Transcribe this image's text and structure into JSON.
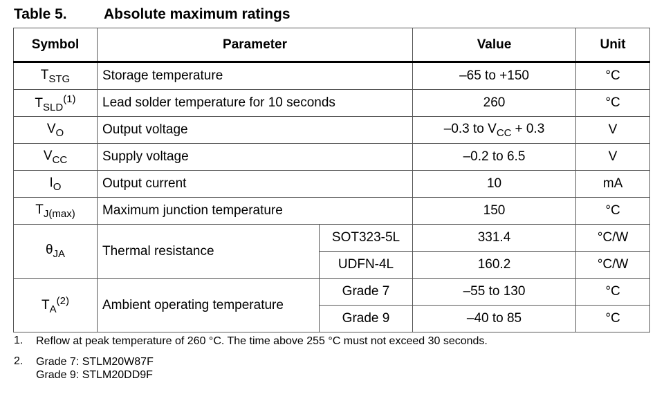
{
  "title": {
    "label": "Table 5.",
    "text": "Absolute maximum ratings"
  },
  "table": {
    "header": [
      "Symbol",
      "Parameter",
      "Value",
      "Unit"
    ],
    "rows": [
      {
        "symbol": {
          "base": "T",
          "sub": "STG"
        },
        "parameter": "Storage temperature",
        "value": "–65 to +150",
        "unit": "°C"
      },
      {
        "symbol": {
          "base": "T",
          "sub": "SLD",
          "sup": "(1)"
        },
        "parameter": "Lead solder temperature for 10 seconds",
        "value": "260",
        "unit": "°C"
      },
      {
        "symbol": {
          "base": "V",
          "sub": "O"
        },
        "parameter": "Output voltage",
        "value": {
          "text": "–0.3 to V",
          "sub": "CC",
          "tail": "+ 0.3"
        },
        "unit": "V"
      },
      {
        "symbol": {
          "base": "V",
          "sub": "CC"
        },
        "parameter": "Supply voltage",
        "value": "–0.2 to 6.5",
        "unit": "V"
      },
      {
        "symbol": {
          "base": "I",
          "sub": "O"
        },
        "parameter": "Output current",
        "value": "10",
        "unit": "mA"
      },
      {
        "symbol": {
          "base": "T",
          "sub": "J(max)"
        },
        "parameter": "Maximum junction temperature",
        "value": "150",
        "unit": "°C"
      },
      {
        "symbol": {
          "base": "θ",
          "sub": "JA"
        },
        "parameter": "Thermal resistance",
        "conditions": [
          {
            "condition": "SOT323-5L",
            "value": "331.4",
            "unit": "°C/W"
          },
          {
            "condition": "UDFN-4L",
            "value": "160.2",
            "unit": "°C/W"
          }
        ]
      },
      {
        "symbol": {
          "base": "T",
          "sub": "A",
          "sup": "(2)"
        },
        "parameter": "Ambient operating temperature",
        "conditions": [
          {
            "condition": "Grade 7",
            "value": "–55 to 130",
            "unit": "°C"
          },
          {
            "condition": "Grade 9",
            "value": "–40 to 85",
            "unit": "°C"
          }
        ]
      }
    ]
  },
  "footnotes": [
    {
      "number": "1.",
      "lines": [
        "Reflow at peak temperature of 260 °C. The time above 255 °C must not exceed 30 seconds."
      ]
    },
    {
      "number": "2.",
      "lines": [
        "Grade 7: STLM20W87F",
        "Grade 9: STLM20DD9F"
      ]
    }
  ]
}
